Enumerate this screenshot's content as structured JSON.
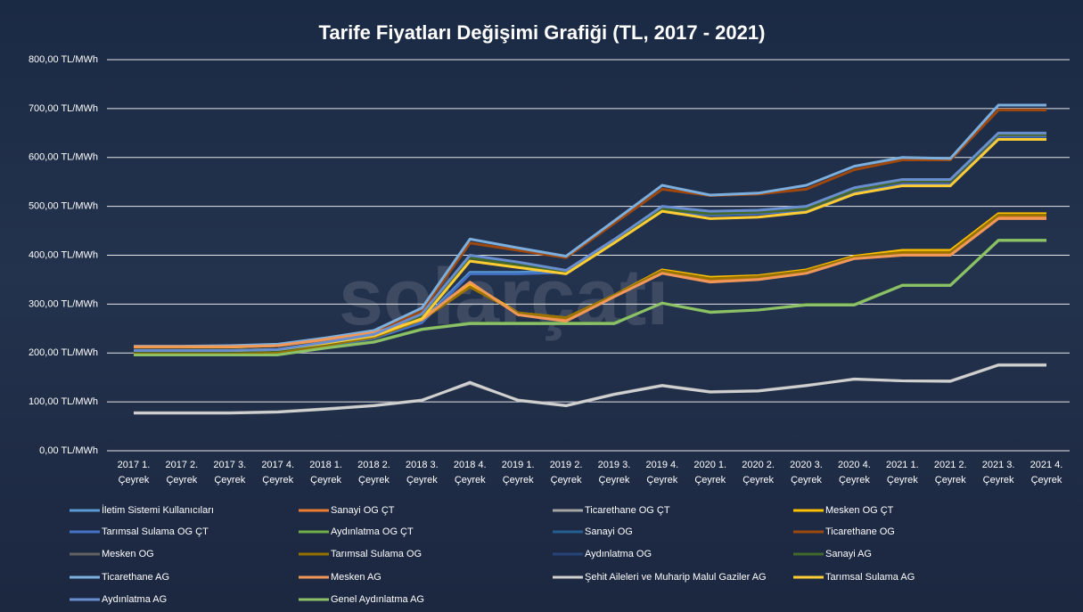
{
  "chart_data": {
    "type": "line",
    "title": "Tarife Fiyatları Değişimi Grafiği (TL, 2017 - 2021)",
    "watermark": "solarçatı",
    "categories": [
      "2017 1. Çeyrek",
      "2017 2. Çeyrek",
      "2017 3. Çeyrek",
      "2017 4. Çeyrek",
      "2018 1. Çeyrek",
      "2018 2. Çeyrek",
      "2018 3. Çeyrek",
      "2018 4. Çeyrek",
      "2019 1. Çeyrek",
      "2019 2. Çeyrek",
      "2019 3. Çeyrek",
      "2019 4. Çeyrek",
      "2020 1. Çeyrek",
      "2020 2. Çeyrek",
      "2020 3. Çeyrek",
      "2020 4. Çeyrek",
      "2021 1. Çeyrek",
      "2021 2. Çeyrek",
      "2021 3. Çeyrek",
      "2021 4. Çeyrek"
    ],
    "ylim": [
      0,
      800
    ],
    "yticks": [
      {
        "value": 0,
        "label": "0,00 TL/MWh"
      },
      {
        "value": 100,
        "label": "100,00 TL/MWh"
      },
      {
        "value": 200,
        "label": "200,00 TL/MWh"
      },
      {
        "value": 300,
        "label": "300,00 TL/MWh"
      },
      {
        "value": 400,
        "label": "400,00 TL/MWh"
      },
      {
        "value": 500,
        "label": "500,00 TL/MWh"
      },
      {
        "value": 600,
        "label": "600,00 TL/MWh"
      },
      {
        "value": 700,
        "label": "700,00 TL/MWh"
      },
      {
        "value": 800,
        "label": "800,00 TL/MWh"
      }
    ],
    "grid": true,
    "legend": "bottom",
    "series": [
      {
        "name": "İletim Sistemi Kullanıcıları",
        "color": "#5b9bd5",
        "values": [
          200,
          200,
          200,
          203,
          215,
          232,
          265,
          365,
          365,
          368,
          430,
          495,
          485,
          488,
          495,
          530,
          548,
          548,
          645,
          645
        ]
      },
      {
        "name": "Sanayi OG ÇT",
        "color": "#ed7d31",
        "values": [
          212,
          212,
          212,
          215,
          227,
          242,
          268,
          340,
          280,
          268,
          316,
          365,
          350,
          353,
          365,
          395,
          405,
          405,
          480,
          480
        ]
      },
      {
        "name": "Ticarethane OG ÇT",
        "color": "#a5a5a5",
        "values": [
          78,
          78,
          78,
          80,
          86,
          93,
          104,
          138,
          104,
          93,
          116,
          134,
          121,
          123,
          134,
          146,
          143,
          143,
          176,
          176
        ]
      },
      {
        "name": "Mesken OG ÇT",
        "color": "#ffc000",
        "values": [
          212,
          212,
          212,
          215,
          228,
          243,
          270,
          342,
          282,
          272,
          318,
          370,
          355,
          358,
          370,
          398,
          410,
          410,
          485,
          485
        ]
      },
      {
        "name": "Tarımsal Sulama OG ÇT",
        "color": "#4472c4",
        "values": [
          200,
          200,
          200,
          202,
          214,
          230,
          262,
          362,
          362,
          365,
          428,
          492,
          482,
          485,
          492,
          528,
          546,
          546,
          643,
          643
        ]
      },
      {
        "name": "Aydınlatma OG ÇT",
        "color": "#70ad47",
        "values": [
          197,
          197,
          197,
          197,
          211,
          223,
          249,
          261,
          261,
          261,
          261,
          302,
          284,
          288,
          299,
          299,
          339,
          339,
          431,
          431
        ]
      },
      {
        "name": "Sanayi OG",
        "color": "#255e91",
        "values": [
          205,
          205,
          205,
          207,
          222,
          238,
          280,
          398,
          385,
          368,
          430,
          497,
          488,
          490,
          497,
          535,
          552,
          552,
          648,
          648
        ]
      },
      {
        "name": "Ticarethane OG",
        "color": "#9e480e",
        "values": [
          213,
          213,
          214,
          216,
          228,
          243,
          285,
          425,
          410,
          395,
          465,
          535,
          522,
          525,
          535,
          575,
          595,
          595,
          697,
          697
        ]
      },
      {
        "name": "Mesken OG",
        "color": "#636363",
        "values": [
          205,
          205,
          205,
          207,
          221,
          237,
          278,
          395,
          382,
          366,
          428,
          494,
          485,
          488,
          494,
          532,
          550,
          550,
          646,
          646
        ]
      },
      {
        "name": "Tarımsal Sulama OG",
        "color": "#997300",
        "values": [
          200,
          200,
          200,
          202,
          216,
          232,
          268,
          335,
          282,
          272,
          318,
          368,
          352,
          356,
          368,
          396,
          406,
          406,
          482,
          482
        ]
      },
      {
        "name": "Aydınlatma OG",
        "color": "#264478",
        "values": [
          204,
          204,
          204,
          206,
          220,
          236,
          278,
          396,
          383,
          367,
          429,
          495,
          486,
          489,
          495,
          533,
          551,
          551,
          647,
          647
        ]
      },
      {
        "name": "Sanayi AG",
        "color": "#43682b",
        "values": [
          203,
          203,
          203,
          205,
          219,
          235,
          276,
          394,
          380,
          365,
          427,
          494,
          485,
          488,
          495,
          533,
          552,
          552,
          647,
          647
        ]
      },
      {
        "name": "Ticarethane AG",
        "color": "#7cafdd",
        "values": [
          214,
          214,
          215,
          218,
          231,
          246,
          292,
          433,
          415,
          398,
          470,
          543,
          523,
          527,
          543,
          582,
          600,
          598,
          707,
          707
        ]
      },
      {
        "name": "Mesken AG",
        "color": "#f1975a",
        "values": [
          213,
          213,
          213,
          215,
          228,
          242,
          268,
          345,
          278,
          265,
          315,
          363,
          345,
          350,
          363,
          393,
          400,
          400,
          475,
          475
        ]
      },
      {
        "name": "Şehit Aileleri ve Muharip Malul Gaziler AG",
        "color": "#d0d0d0",
        "values": [
          77,
          77,
          77,
          79,
          85,
          92,
          103,
          140,
          103,
          92,
          115,
          133,
          120,
          122,
          133,
          147,
          143,
          142,
          175,
          175
        ]
      },
      {
        "name": "Tarımsal Sulama AG",
        "color": "#ffcd33",
        "values": [
          205,
          205,
          205,
          207,
          220,
          235,
          270,
          388,
          375,
          362,
          425,
          490,
          475,
          478,
          488,
          525,
          542,
          542,
          637,
          637
        ]
      },
      {
        "name": "Aydınlatma AG",
        "color": "#698ed0",
        "values": [
          205,
          205,
          205,
          207,
          222,
          238,
          280,
          400,
          386,
          369,
          432,
          500,
          490,
          492,
          500,
          538,
          555,
          555,
          650,
          650
        ]
      },
      {
        "name": "Genel Aydınlatma AG",
        "color": "#8cc168",
        "values": [
          196,
          196,
          196,
          196,
          210,
          222,
          248,
          260,
          260,
          260,
          260,
          302,
          283,
          288,
          298,
          298,
          338,
          338,
          430,
          430
        ]
      }
    ]
  }
}
